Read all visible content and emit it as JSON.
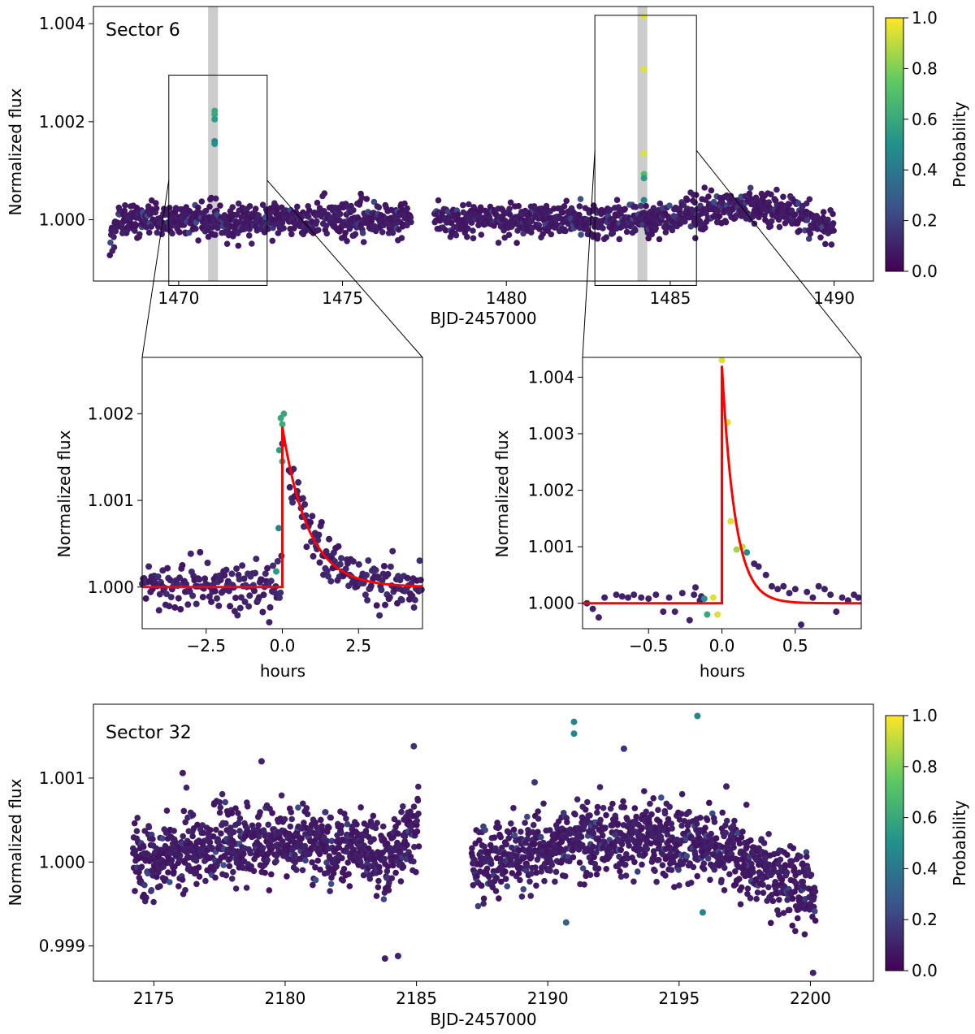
{
  "figure": {
    "colorbar_label": "Probability",
    "colorbar_ticks": [
      "0.0",
      "0.2",
      "0.4",
      "0.6",
      "0.8",
      "1.0"
    ],
    "colors": {
      "fit_line": "#ff0000",
      "shade": "#cccccc",
      "viridis": [
        "#440154",
        "#3b528b",
        "#21918c",
        "#5ec962",
        "#fde725"
      ]
    }
  },
  "chart_data": [
    {
      "id": "sector6",
      "type": "scatter",
      "title": "Sector 6",
      "xlabel": "BJD-2457000",
      "ylabel": "Normalized flux",
      "xlim": [
        1467.4,
        1491.2
      ],
      "ylim": [
        0.99875,
        1.00435
      ],
      "xticks": [
        1470,
        1475,
        1480,
        1485,
        1490
      ],
      "xtick_labels": [
        "1470",
        "1475",
        "1480",
        "1485",
        "1490"
      ],
      "yticks": [
        1.0,
        1.002,
        1.004
      ],
      "ytick_labels": [
        "1.000",
        "1.002",
        "1.004"
      ],
      "gaps": [
        [
          1477.1,
          1477.8
        ]
      ],
      "segments": [
        [
          1467.9,
          1477.1
        ],
        [
          1477.8,
          1490.0
        ]
      ],
      "scatter_sigma": 0.0002,
      "shaded_regions": [
        [
          1470.9,
          1471.2
        ],
        [
          1484.0,
          1484.3
        ]
      ],
      "zoom_boxes": [
        {
          "x": [
            1469.7,
            1472.7
          ],
          "y": [
            0.99866,
            1.00295
          ]
        },
        {
          "x": [
            1482.7,
            1485.8
          ],
          "y": [
            0.99866,
            1.00417
          ]
        }
      ],
      "flare_points": [
        {
          "x": 1471.1,
          "y": 1.00222,
          "p": 0.6
        },
        {
          "x": 1471.1,
          "y": 1.00215,
          "p": 0.6
        },
        {
          "x": 1471.1,
          "y": 1.00205,
          "p": 0.55
        },
        {
          "x": 1471.1,
          "y": 1.0016,
          "p": 0.45
        },
        {
          "x": 1471.1,
          "y": 1.00155,
          "p": 0.5
        },
        {
          "x": 1484.2,
          "y": 1.00415,
          "p": 0.95
        },
        {
          "x": 1484.2,
          "y": 1.00307,
          "p": 0.95
        },
        {
          "x": 1484.2,
          "y": 1.00135,
          "p": 0.95
        },
        {
          "x": 1484.2,
          "y": 1.00093,
          "p": 0.7
        },
        {
          "x": 1484.2,
          "y": 1.00085,
          "p": 0.55
        },
        {
          "x": 1484.2,
          "y": 1.0004,
          "p": 0.45
        }
      ]
    },
    {
      "id": "zoom1",
      "type": "scatter",
      "xlabel": "hours",
      "ylabel": "Normalized flux",
      "xlim": [
        -4.6,
        4.6
      ],
      "ylim": [
        0.99952,
        1.00265
      ],
      "xticks": [
        -2.5,
        0.0,
        2.5
      ],
      "xtick_labels": [
        "−2.5",
        "0.0",
        "2.5"
      ],
      "yticks": [
        1.0,
        1.001,
        1.002
      ],
      "ytick_labels": [
        "1.000",
        "1.001",
        "1.002"
      ],
      "fit": {
        "peak": 0.00185,
        "tau": 0.85
      },
      "flare_points": [
        {
          "x": 0.05,
          "y": 1.002,
          "p": 0.6
        },
        {
          "x": -0.05,
          "y": 1.00195,
          "p": 0.6
        },
        {
          "x": 0.0,
          "y": 1.00188,
          "p": 0.62
        },
        {
          "x": -0.1,
          "y": 1.00158,
          "p": 0.55
        },
        {
          "x": 0.0,
          "y": 1.00145,
          "p": 0.6
        },
        {
          "x": -0.12,
          "y": 1.00068,
          "p": 0.45
        },
        {
          "x": -0.2,
          "y": 1.00018,
          "p": 0.55
        }
      ]
    },
    {
      "id": "zoom2",
      "type": "scatter",
      "xlabel": "hours",
      "ylabel": "Normalized flux",
      "xlim": [
        -0.95,
        0.95
      ],
      "ylim": [
        0.99955,
        1.00435
      ],
      "xticks": [
        -0.5,
        0.0,
        0.5
      ],
      "xtick_labels": [
        "−0.5",
        "0.0",
        "0.5"
      ],
      "yticks": [
        1.0,
        1.001,
        1.002,
        1.003,
        1.004
      ],
      "ytick_labels": [
        "1.000",
        "1.001",
        "1.002",
        "1.003",
        "1.004"
      ],
      "fit": {
        "peak": 0.0042,
        "tau": 0.09
      },
      "points": [
        {
          "x": -0.92,
          "y": 1.0,
          "p": 0.1
        },
        {
          "x": -0.88,
          "y": 0.9999,
          "p": 0.1
        },
        {
          "x": -0.84,
          "y": 0.99975,
          "p": 0.1
        },
        {
          "x": -0.8,
          "y": 1.0001,
          "p": 0.1
        },
        {
          "x": -0.72,
          "y": 1.00015,
          "p": 0.1
        },
        {
          "x": -0.68,
          "y": 1.00012,
          "p": 0.1
        },
        {
          "x": -0.64,
          "y": 1.0001,
          "p": 0.1
        },
        {
          "x": -0.6,
          "y": 1.00015,
          "p": 0.1
        },
        {
          "x": -0.55,
          "y": 1.0001,
          "p": 0.1
        },
        {
          "x": -0.5,
          "y": 1.00008,
          "p": 0.1
        },
        {
          "x": -0.45,
          "y": 1.00015,
          "p": 0.1
        },
        {
          "x": -0.4,
          "y": 0.99985,
          "p": 0.1
        },
        {
          "x": -0.36,
          "y": 1.0001,
          "p": 0.1
        },
        {
          "x": -0.32,
          "y": 0.99985,
          "p": 0.1
        },
        {
          "x": -0.27,
          "y": 1.00018,
          "p": 0.1
        },
        {
          "x": -0.22,
          "y": 0.9997,
          "p": 0.1
        },
        {
          "x": -0.18,
          "y": 1.00028,
          "p": 0.1
        },
        {
          "x": -0.14,
          "y": 1.00012,
          "p": 0.1
        },
        {
          "x": -0.19,
          "y": 1.00015,
          "p": 0.1
        },
        {
          "x": -0.15,
          "y": 1.00005,
          "p": 0.1
        },
        {
          "x": -0.12,
          "y": 1.00008,
          "p": 0.5
        },
        {
          "x": -0.1,
          "y": 0.9998,
          "p": 0.6
        },
        {
          "x": -0.06,
          "y": 1.0001,
          "p": 0.95
        },
        {
          "x": -0.03,
          "y": 0.9998,
          "p": 0.95
        },
        {
          "x": 0.0,
          "y": 1.0043,
          "p": 0.95
        },
        {
          "x": 0.04,
          "y": 1.0032,
          "p": 0.95
        },
        {
          "x": 0.06,
          "y": 1.00145,
          "p": 0.95
        },
        {
          "x": 0.1,
          "y": 1.00095,
          "p": 0.85
        },
        {
          "x": 0.14,
          "y": 1.001,
          "p": 0.9
        },
        {
          "x": 0.17,
          "y": 1.0009,
          "p": 0.5
        },
        {
          "x": 0.22,
          "y": 1.0007,
          "p": 0.1
        },
        {
          "x": 0.25,
          "y": 1.00065,
          "p": 0.1
        },
        {
          "x": 0.3,
          "y": 1.0005,
          "p": 0.1
        },
        {
          "x": 0.34,
          "y": 1.0003,
          "p": 0.1
        },
        {
          "x": 0.38,
          "y": 1.00025,
          "p": 0.1
        },
        {
          "x": 0.42,
          "y": 1.0003,
          "p": 0.1
        },
        {
          "x": 0.46,
          "y": 1.00018,
          "p": 0.1
        },
        {
          "x": 0.5,
          "y": 1.00025,
          "p": 0.1
        },
        {
          "x": 0.54,
          "y": 0.99962,
          "p": 0.1
        },
        {
          "x": 0.58,
          "y": 1.0002,
          "p": 0.1
        },
        {
          "x": 0.62,
          "y": 1.0001,
          "p": 0.1
        },
        {
          "x": 0.66,
          "y": 1.0003,
          "p": 0.1
        },
        {
          "x": 0.7,
          "y": 1.00025,
          "p": 0.1
        },
        {
          "x": 0.74,
          "y": 1.00015,
          "p": 0.1
        },
        {
          "x": 0.78,
          "y": 0.99985,
          "p": 0.1
        },
        {
          "x": 0.82,
          "y": 1.0001,
          "p": 0.1
        },
        {
          "x": 0.86,
          "y": 1.00005,
          "p": 0.1
        },
        {
          "x": 0.9,
          "y": 1.00015,
          "p": 0.1
        },
        {
          "x": 0.93,
          "y": 1.0001,
          "p": 0.1
        }
      ]
    },
    {
      "id": "sector32",
      "type": "scatter",
      "title": "Sector 32",
      "xlabel": "BJD-2457000",
      "ylabel": "Normalized flux",
      "xlim": [
        2172.7,
        2202.4
      ],
      "ylim": [
        0.99858,
        1.00188
      ],
      "xticks": [
        2175,
        2180,
        2185,
        2190,
        2195,
        2200
      ],
      "xtick_labels": [
        "2175",
        "2180",
        "2185",
        "2190",
        "2195",
        "2200"
      ],
      "yticks": [
        0.999,
        1.0,
        1.001
      ],
      "ytick_labels": [
        "0.999",
        "1.000",
        "1.001"
      ],
      "segments": [
        [
          2174.2,
          2185.1
        ],
        [
          2187.1,
          2200.2
        ]
      ],
      "scatter_sigma": 0.00025,
      "outliers": [
        {
          "x": 2191.0,
          "y": 1.00167,
          "p": 0.45
        },
        {
          "x": 2191.0,
          "y": 1.00153,
          "p": 0.45
        },
        {
          "x": 2195.7,
          "y": 1.00174,
          "p": 0.45
        },
        {
          "x": 2192.9,
          "y": 1.00135,
          "p": 0.15
        },
        {
          "x": 2190.7,
          "y": 0.99928,
          "p": 0.3
        },
        {
          "x": 2195.9,
          "y": 0.9994,
          "p": 0.45
        },
        {
          "x": 2184.9,
          "y": 1.00138,
          "p": 0.15
        },
        {
          "x": 2179.1,
          "y": 1.0012,
          "p": 0.1
        },
        {
          "x": 2176.1,
          "y": 1.00106,
          "p": 0.1
        },
        {
          "x": 2196.8,
          "y": 1.0009,
          "p": 0.1
        },
        {
          "x": 2189.5,
          "y": 1.00095,
          "p": 0.15
        },
        {
          "x": 2183.8,
          "y": 0.99885,
          "p": 0.1
        },
        {
          "x": 2184.3,
          "y": 0.99888,
          "p": 0.1
        },
        {
          "x": 2200.1,
          "y": 0.99868,
          "p": 0.1
        }
      ]
    }
  ]
}
